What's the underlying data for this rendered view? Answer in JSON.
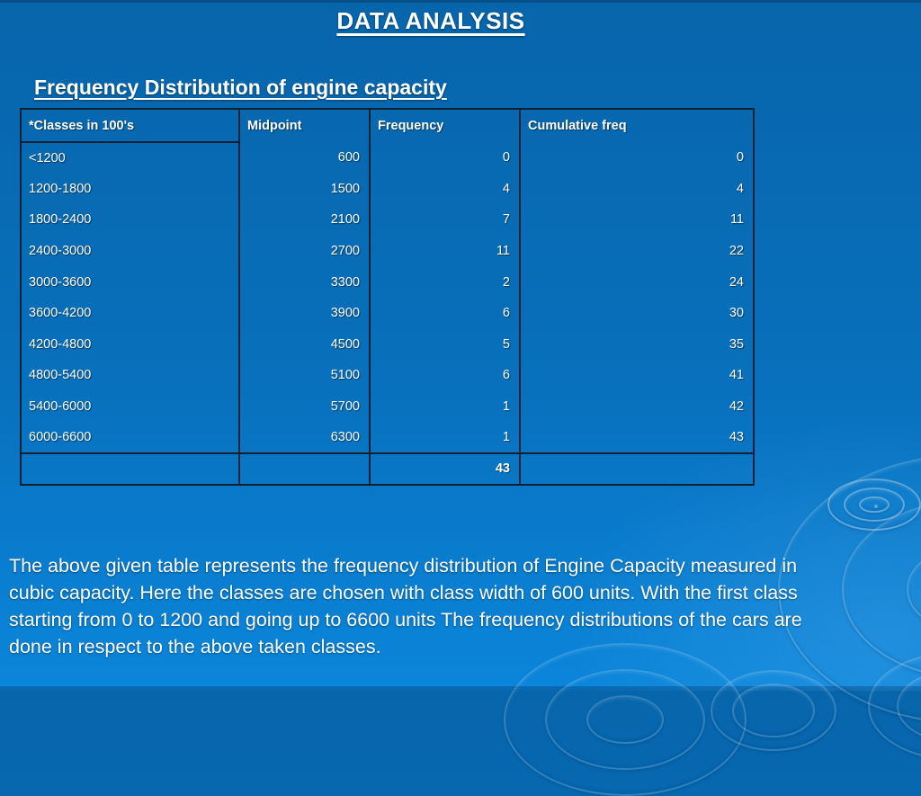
{
  "slide": {
    "title": "DATA ANALYSIS",
    "subtitle": "Frequency Distribution of engine capacity"
  },
  "table": {
    "headers": [
      "*Classes in 100's",
      "Midpoint",
      "Frequency",
      "Cumulative freq"
    ],
    "rows": [
      [
        "<1200",
        "600",
        "0",
        "0"
      ],
      [
        "1200-1800",
        "1500",
        "4",
        "4"
      ],
      [
        "1800-2400",
        "2100",
        "7",
        "11"
      ],
      [
        "2400-3000",
        "2700",
        "11",
        "22"
      ],
      [
        "3000-3600",
        "3300",
        "2",
        "24"
      ],
      [
        "3600-4200",
        "3900",
        "6",
        "30"
      ],
      [
        "4200-4800",
        "4500",
        "5",
        "35"
      ],
      [
        "4800-5400",
        "5100",
        "6",
        "41"
      ],
      [
        "5400-6000",
        "5700",
        "1",
        "42"
      ],
      [
        "6000-6600",
        "6300",
        "1",
        "43"
      ]
    ],
    "total_row": [
      "",
      "",
      "43",
      ""
    ]
  },
  "paragraph": {
    "lines": [
      "The above given table represents the frequency distribution of Engine Capacity measured in",
      "cubic capacity. Here the classes are chosen with class width of 600 units. With the first class",
      "starting from 0 to 1200 and going up to 6600 units The frequency distributions of the cars are",
      "done in respect to the above taken classes."
    ]
  },
  "colors": {
    "background_top": "#0765ab",
    "background_bottom": "#0b86db",
    "table_border": "#0d2133",
    "text": "#ffffff"
  }
}
